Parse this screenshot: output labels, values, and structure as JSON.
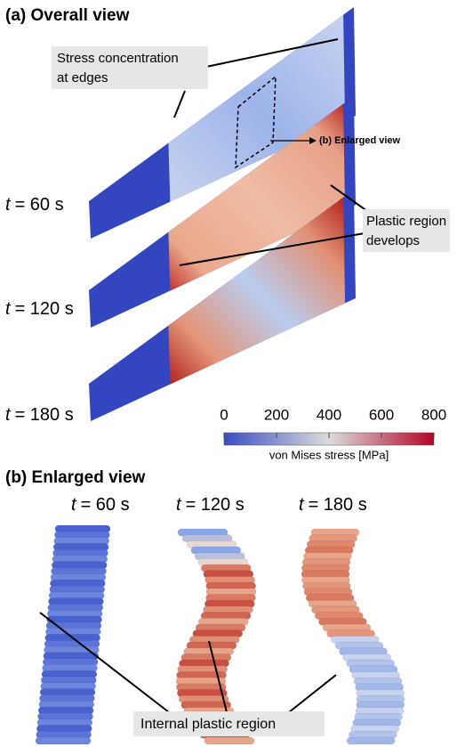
{
  "panel_a": {
    "title": "(a) Overall view",
    "stress_concentration": [
      "Stress concentration",
      "at edges"
    ],
    "enlarged_link": "(b) Enlarged view",
    "plastic_region": [
      "Plastic region",
      "develops"
    ],
    "time_labels": [
      {
        "symbol": "t",
        "text": "= 60 s"
      },
      {
        "symbol": "t",
        "text": "= 120 s"
      },
      {
        "symbol": "t",
        "text": "= 180 s"
      }
    ]
  },
  "colorbar": {
    "label": "von Mises stress [MPa]",
    "range": [
      0,
      800
    ],
    "ticks": [
      0,
      200,
      400,
      600,
      800
    ],
    "colors": [
      "#3b4cc0",
      "#dcdddd",
      "#b40426"
    ]
  },
  "panel_b": {
    "title": "(b) Enlarged view",
    "time_labels": [
      {
        "symbol": "t",
        "text": "= 60 s"
      },
      {
        "symbol": "t",
        "text": "= 120 s"
      },
      {
        "symbol": "t",
        "text": "= 180 s"
      }
    ],
    "annotation": "Internal plastic region"
  }
}
